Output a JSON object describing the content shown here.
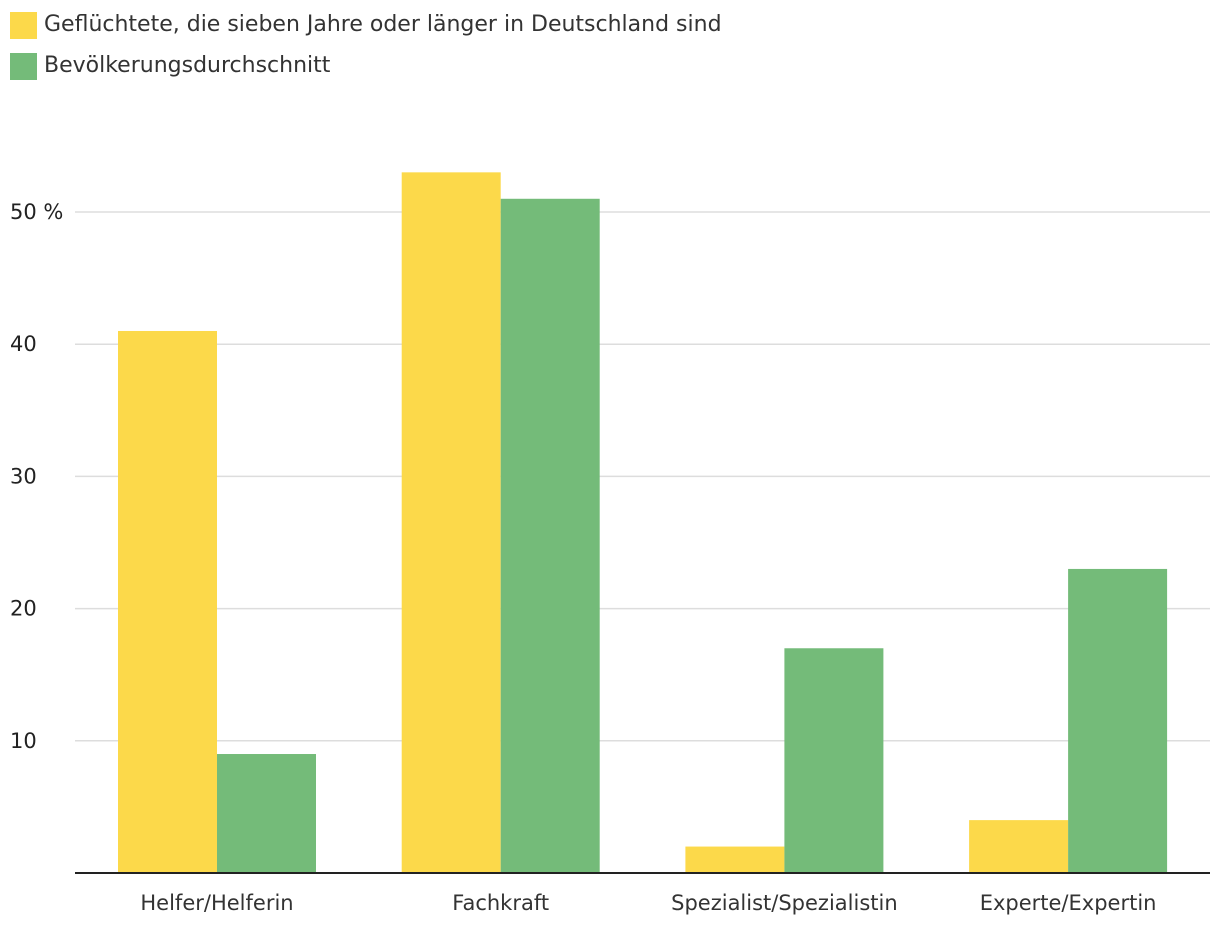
{
  "chart_data": {
    "type": "bar",
    "title": "",
    "xlabel": "",
    "ylabel": "",
    "ylim": [
      0,
      53
    ],
    "yticks": [
      10,
      20,
      30,
      40,
      50
    ],
    "ytick_labels": [
      "10",
      "20",
      "30",
      "40",
      "50 %"
    ],
    "grid": true,
    "legend_position": "top-left",
    "categories": [
      "Helfer/Helferin",
      "Fachkraft",
      "Spezialist/Spezialistin",
      "Experte/Expertin"
    ],
    "series": [
      {
        "name": "Geflüchtete, die sieben Jahre oder länger in Deutschland sind",
        "color": "#fcd94a",
        "values": [
          41,
          53,
          2,
          4
        ]
      },
      {
        "name": "Bevölkerungsdurchschnitt",
        "color": "#74bb79",
        "values": [
          9,
          51,
          17,
          23
        ]
      }
    ]
  },
  "colors": {
    "grid": "#dddddd",
    "axis": "#222222"
  }
}
